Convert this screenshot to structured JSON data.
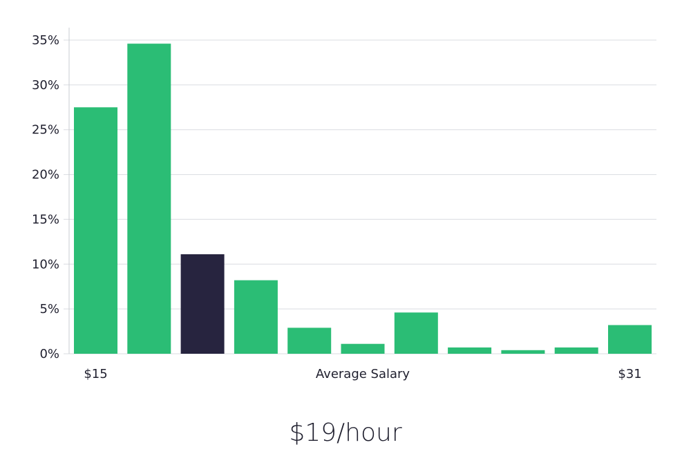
{
  "chart_data": {
    "type": "bar",
    "values": [
      27.5,
      34.6,
      11.1,
      8.2,
      2.9,
      1.1,
      4.6,
      0.7,
      0.4,
      0.7,
      3.2
    ],
    "highlight_index": 2,
    "colors": {
      "bar": "#2bbd75",
      "highlight": "#27243f",
      "grid": "#d9dce0",
      "axis": "#c9ccd1"
    },
    "ylim": [
      0,
      35
    ],
    "yticks": [
      "0%",
      "5%",
      "10%",
      "15%",
      "20%",
      "25%",
      "30%",
      "35%"
    ],
    "ytick_values": [
      0,
      5,
      10,
      15,
      20,
      25,
      30,
      35
    ],
    "x_min_label": "$15",
    "x_max_label": "$31",
    "xlabel": "Average Salary",
    "grid": true
  },
  "headline": "$19/hour"
}
